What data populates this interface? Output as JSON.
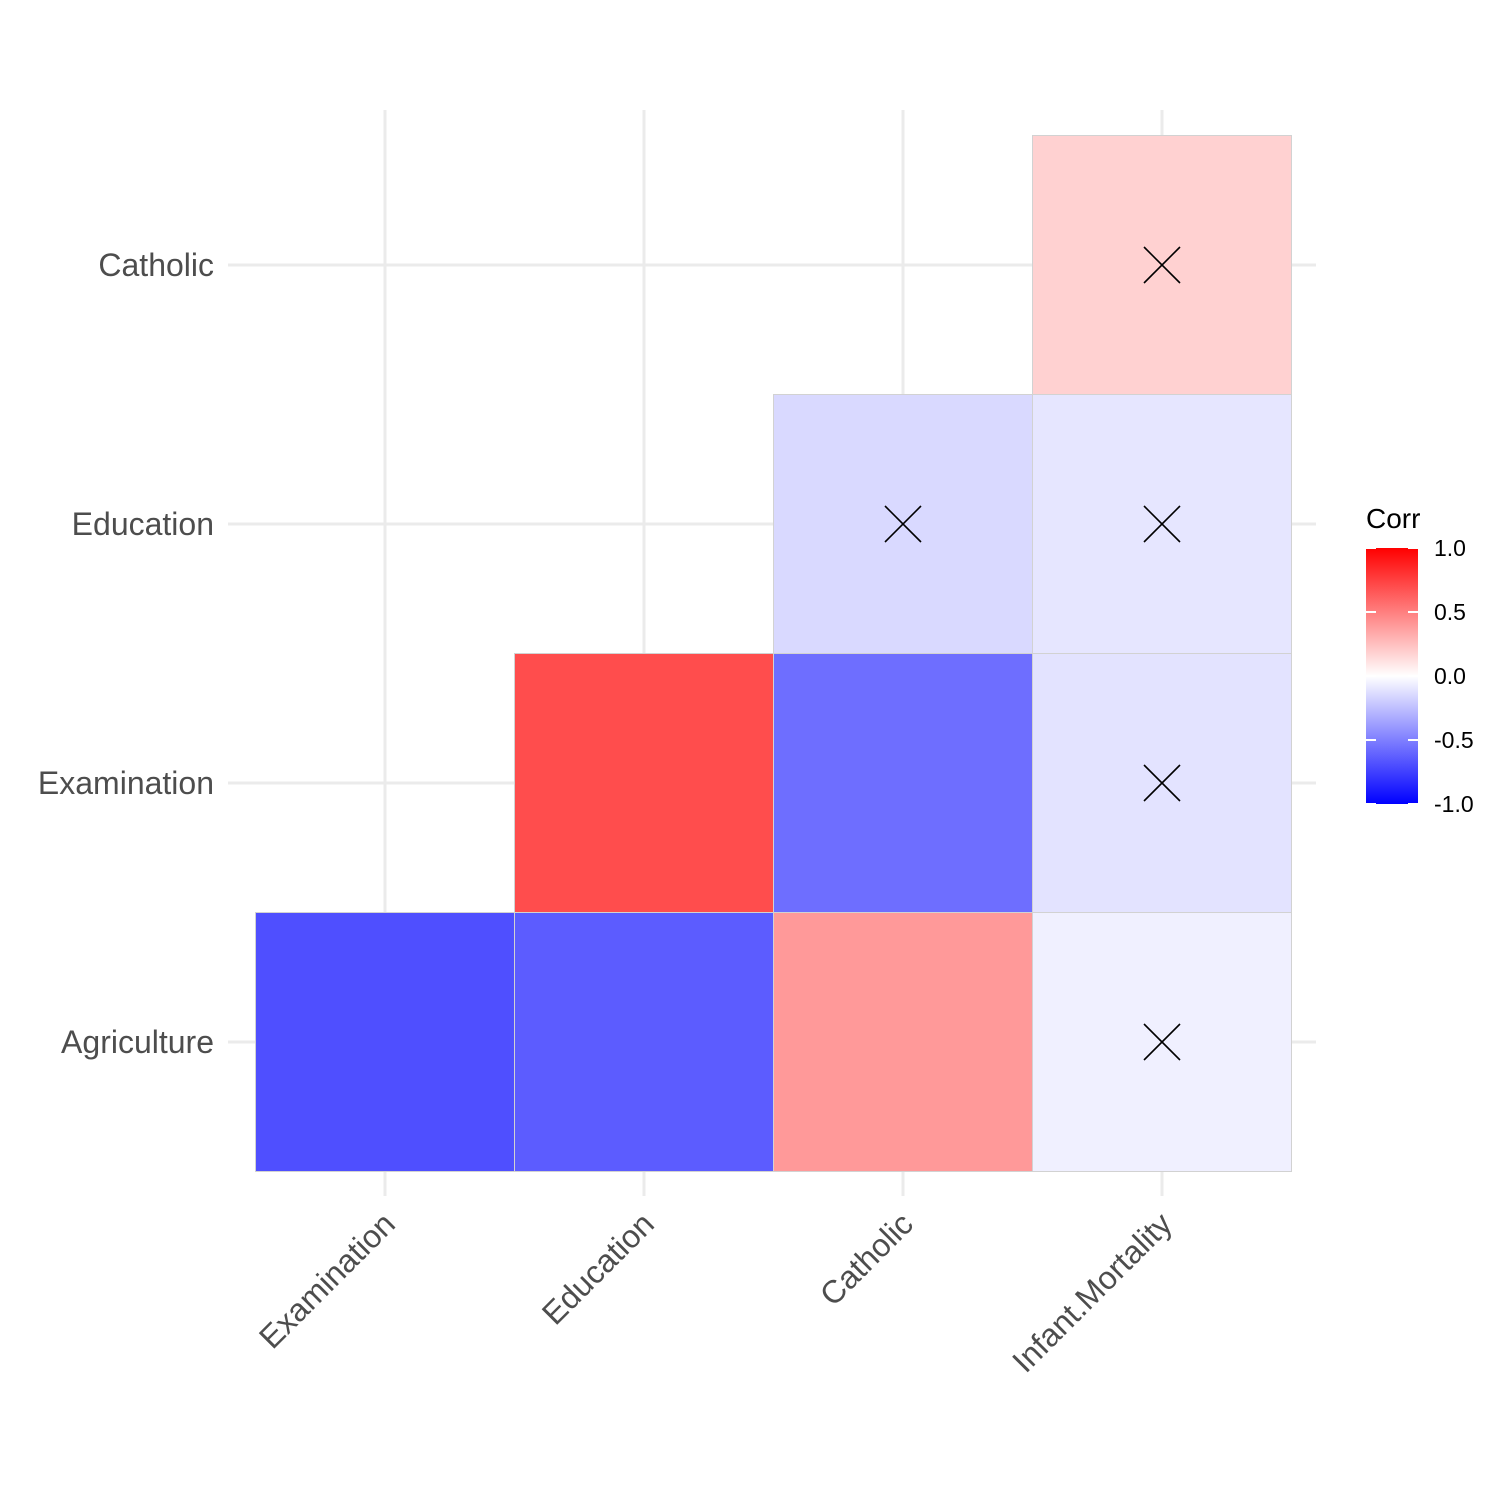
{
  "chart_data": {
    "type": "heatmap",
    "title": "",
    "xlabel": "",
    "ylabel": "",
    "x_categories": [
      "Examination",
      "Education",
      "Catholic",
      "Infant.Mortality"
    ],
    "y_categories": [
      "Agriculture",
      "Examination",
      "Education",
      "Catholic"
    ],
    "cells": [
      {
        "x": "Examination",
        "y": "Agriculture",
        "value": -0.69,
        "insignificant": false
      },
      {
        "x": "Education",
        "y": "Agriculture",
        "value": -0.64,
        "insignificant": false
      },
      {
        "x": "Catholic",
        "y": "Agriculture",
        "value": 0.4,
        "insignificant": false
      },
      {
        "x": "Infant.Mortality",
        "y": "Agriculture",
        "value": -0.06,
        "insignificant": true
      },
      {
        "x": "Education",
        "y": "Examination",
        "value": 0.7,
        "insignificant": false
      },
      {
        "x": "Catholic",
        "y": "Examination",
        "value": -0.57,
        "insignificant": false
      },
      {
        "x": "Infant.Mortality",
        "y": "Examination",
        "value": -0.11,
        "insignificant": true
      },
      {
        "x": "Catholic",
        "y": "Education",
        "value": -0.15,
        "insignificant": true
      },
      {
        "x": "Infant.Mortality",
        "y": "Education",
        "value": -0.1,
        "insignificant": true
      },
      {
        "x": "Infant.Mortality",
        "y": "Catholic",
        "value": 0.18,
        "insignificant": true
      }
    ],
    "legend": {
      "title": "Corr",
      "placement": "right",
      "range": [
        -1,
        1
      ],
      "ticks": [
        1.0,
        0.5,
        0.0,
        -0.5,
        -1.0
      ],
      "tick_labels": [
        "1.0",
        "0.5",
        "0.0",
        "-0.5",
        "-1.0"
      ]
    },
    "colors": {
      "low": "#0000ff",
      "mid": "#ffffff",
      "high": "#ff0000"
    },
    "grid": true
  }
}
